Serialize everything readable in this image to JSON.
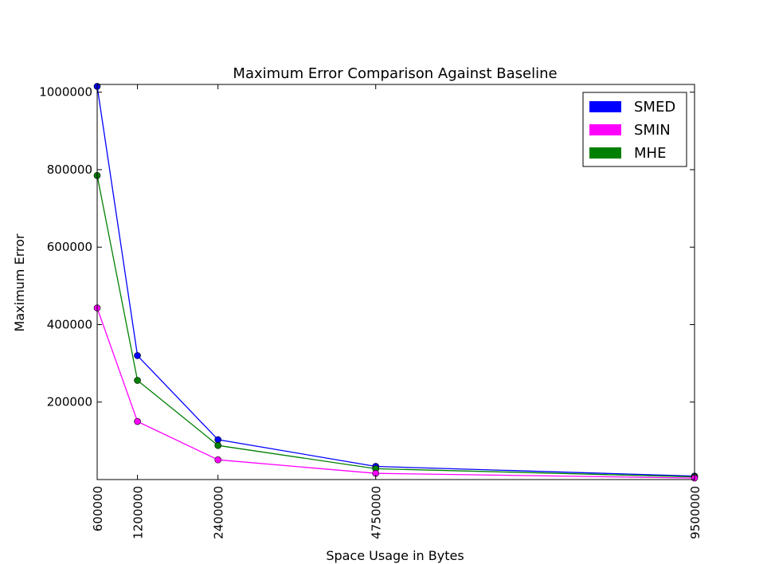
{
  "chart_data": {
    "type": "line",
    "title": "Maximum Error Comparison Against Baseline",
    "xlabel": "Space Usage in Bytes",
    "ylabel": "Maximum Error",
    "xlim": [
      600000,
      9500000
    ],
    "ylim": [
      0,
      1020000
    ],
    "x_ticks": [
      "600000",
      "1200000",
      "2400000",
      "4750000",
      "9500000"
    ],
    "y_ticks": [
      {
        "value": 200000,
        "label": "200000"
      },
      {
        "value": 400000,
        "label": "400000"
      },
      {
        "value": 600000,
        "label": "600000"
      },
      {
        "value": 800000,
        "label": "800000"
      },
      {
        "value": 1000000,
        "label": "1000000"
      }
    ],
    "x": [
      600000,
      1200000,
      2400000,
      4750000,
      9500000
    ],
    "series": [
      {
        "name": "SMED",
        "color": "#0000ff",
        "values": [
          1015000,
          320000,
          103000,
          34000,
          9000
        ]
      },
      {
        "name": "SMIN",
        "color": "#ff00ff",
        "values": [
          443000,
          150000,
          51000,
          16000,
          4000
        ]
      },
      {
        "name": "MHE",
        "color": "#008000",
        "values": [
          785000,
          256000,
          88000,
          28000,
          7000
        ]
      }
    ],
    "plot_series_order": [
      "SMED",
      "MHE",
      "SMIN"
    ],
    "legend_position": "top-right",
    "grid": false
  }
}
